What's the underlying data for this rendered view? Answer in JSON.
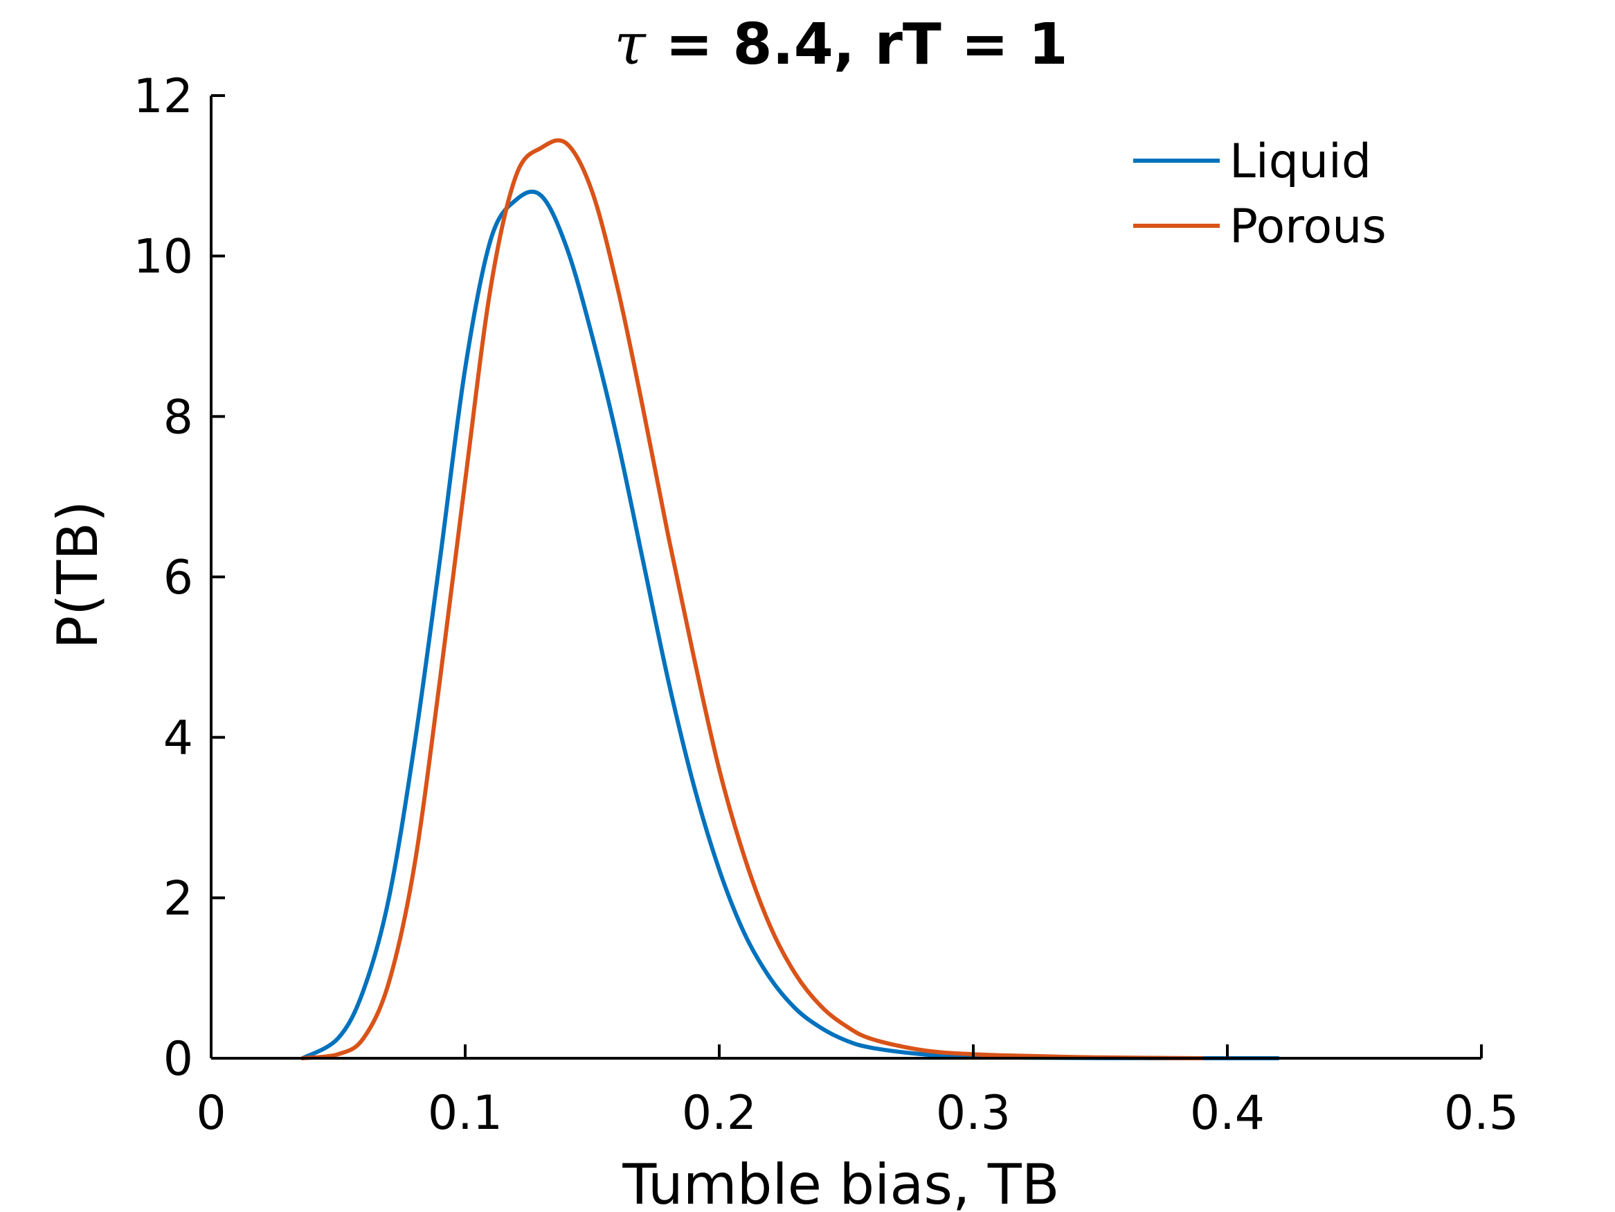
{
  "chart_data": {
    "type": "line",
    "title": {
      "symbol": "τ",
      "rest": " = 8.4, rT = 1"
    },
    "xlabel": "Tumble bias, TB",
    "ylabel": "P(TB)",
    "xlim": [
      0,
      0.5
    ],
    "ylim": [
      0,
      12
    ],
    "xticks": [
      0,
      0.1,
      0.2,
      0.3,
      0.4,
      0.5
    ],
    "xtick_labels": [
      "0",
      "0.1",
      "0.2",
      "0.3",
      "0.4",
      "0.5"
    ],
    "yticks": [
      0,
      2,
      4,
      6,
      8,
      10,
      12
    ],
    "ytick_labels": [
      "0",
      "2",
      "4",
      "6",
      "8",
      "10",
      "12"
    ],
    "grid": false,
    "legend_position": "top-right",
    "series": [
      {
        "name": "Liquid",
        "color": "#0072BD",
        "x": [
          0.036,
          0.05,
          0.06,
          0.07,
          0.08,
          0.09,
          0.1,
          0.11,
          0.12,
          0.13,
          0.14,
          0.15,
          0.16,
          0.17,
          0.18,
          0.19,
          0.2,
          0.21,
          0.22,
          0.23,
          0.24,
          0.25,
          0.26,
          0.28,
          0.3,
          0.32,
          0.35,
          0.39,
          0.42
        ],
        "y": [
          0.0,
          0.25,
          0.85,
          2.0,
          3.9,
          6.2,
          8.6,
          10.2,
          10.7,
          10.75,
          10.1,
          9.0,
          7.7,
          6.2,
          4.7,
          3.4,
          2.35,
          1.55,
          1.0,
          0.62,
          0.38,
          0.22,
          0.13,
          0.05,
          0.02,
          0.008,
          0.002,
          0.0,
          0.0
        ]
      },
      {
        "name": "Porous",
        "color": "#D95319",
        "x": [
          0.036,
          0.05,
          0.06,
          0.07,
          0.08,
          0.09,
          0.1,
          0.11,
          0.12,
          0.13,
          0.14,
          0.15,
          0.16,
          0.17,
          0.18,
          0.19,
          0.2,
          0.21,
          0.22,
          0.23,
          0.24,
          0.25,
          0.26,
          0.28,
          0.3,
          0.32,
          0.35,
          0.39
        ],
        "y": [
          0.0,
          0.05,
          0.25,
          0.95,
          2.4,
          4.7,
          7.2,
          9.6,
          11.0,
          11.35,
          11.4,
          10.8,
          9.6,
          8.1,
          6.5,
          5.0,
          3.6,
          2.5,
          1.65,
          1.05,
          0.65,
          0.4,
          0.24,
          0.1,
          0.05,
          0.03,
          0.01,
          0.0
        ]
      }
    ]
  }
}
